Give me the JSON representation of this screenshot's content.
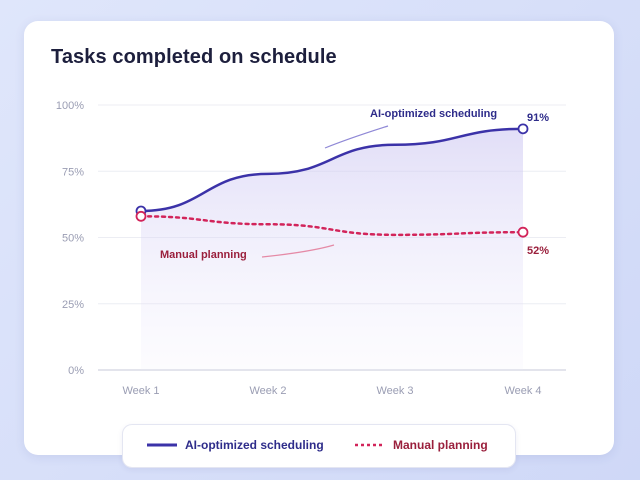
{
  "title": "Tasks completed on schedule",
  "chart_data": {
    "type": "line",
    "categories": [
      "Week 1",
      "Week 2",
      "Week 3",
      "Week 4"
    ],
    "series": [
      {
        "name": "AI-optimized scheduling",
        "values": [
          60,
          74,
          85,
          91
        ],
        "color": "#3b32a8",
        "style": "solid",
        "end_label": "91%"
      },
      {
        "name": "Manual planning",
        "values": [
          58,
          55,
          51,
          52
        ],
        "color": "#d2245a",
        "style": "dotted",
        "end_label": "52%"
      }
    ],
    "ylim": [
      0,
      100
    ],
    "yticks": [
      "0%",
      "25%",
      "50%",
      "75%",
      "100%"
    ],
    "ytick_values": [
      0,
      25,
      50,
      75,
      100
    ],
    "grid": true,
    "legend_position": "bottom",
    "annotations": [
      "AI-optimized scheduling",
      "Manual planning"
    ]
  },
  "legend": {
    "ai_label": "AI-optimized scheduling",
    "manual_label": "Manual planning"
  }
}
